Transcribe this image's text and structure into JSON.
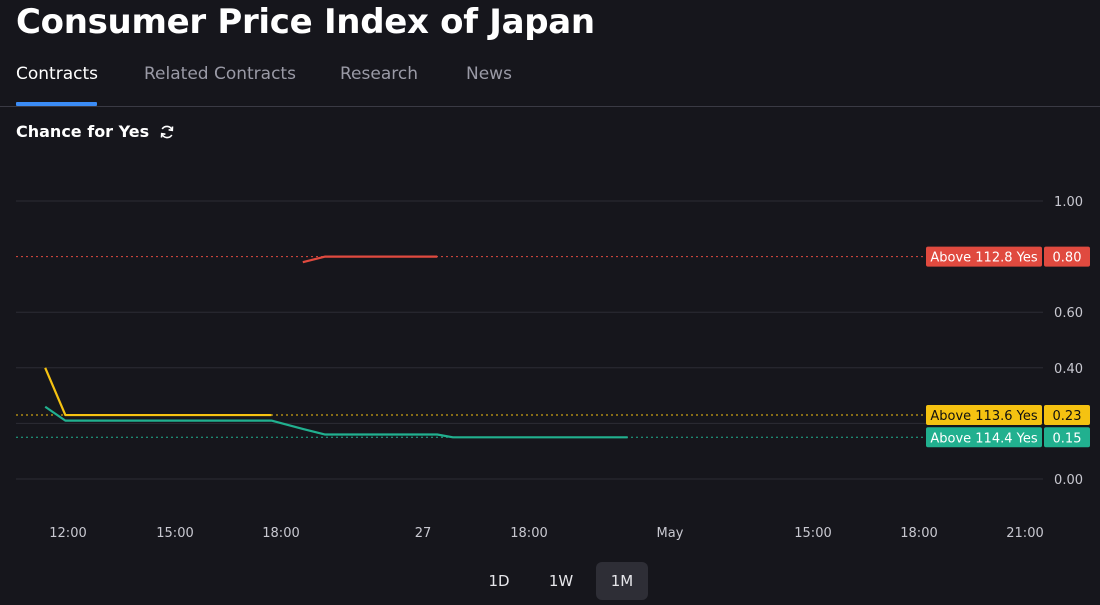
{
  "page": {
    "title": "Consumer Price Index of Japan"
  },
  "tabs": [
    {
      "label": "Contracts",
      "active": true
    },
    {
      "label": "Related Contracts",
      "active": false
    },
    {
      "label": "Research",
      "active": false
    },
    {
      "label": "News",
      "active": false
    }
  ],
  "section": {
    "title": "Chance for Yes",
    "icon": "refresh-icon"
  },
  "range_buttons": [
    {
      "label": "1D",
      "active": false
    },
    {
      "label": "1W",
      "active": false
    },
    {
      "label": "1M",
      "active": true
    }
  ],
  "colors": {
    "background": "#16161c",
    "red": "#e04a3f",
    "yellow": "#f5c211",
    "teal": "#21b08f",
    "accent": "#3b8cf6"
  },
  "chart_data": {
    "type": "line",
    "ylim": [
      -0.05,
      1.05
    ],
    "yticks": [
      "1.00",
      "0.60",
      "0.40",
      "0.00"
    ],
    "grid": true,
    "xticks": [
      "12:00",
      "15:00",
      "18:00",
      "27",
      "18:00",
      "May",
      "15:00",
      "18:00",
      "21:00"
    ],
    "series": [
      {
        "name": "Above 112.8 Yes",
        "color": "#e04a3f",
        "last": "0.80",
        "points": [
          [
            12,
            0.78
          ],
          [
            13,
            0.8
          ],
          [
            18,
            0.8
          ]
        ]
      },
      {
        "name": "Above 113.6 Yes",
        "color": "#f5c211",
        "last": "0.23",
        "points": [
          [
            0.5,
            0.4
          ],
          [
            1.4,
            0.23
          ],
          [
            10.6,
            0.23
          ]
        ]
      },
      {
        "name": "Above 114.4 Yes",
        "color": "#21b08f",
        "last": "0.15",
        "points": [
          [
            0.5,
            0.26
          ],
          [
            1.4,
            0.21
          ],
          [
            10.6,
            0.21
          ],
          [
            12,
            0.18
          ],
          [
            13,
            0.16
          ],
          [
            18,
            0.16
          ],
          [
            18.7,
            0.15
          ],
          [
            26.5,
            0.15
          ]
        ]
      }
    ]
  }
}
